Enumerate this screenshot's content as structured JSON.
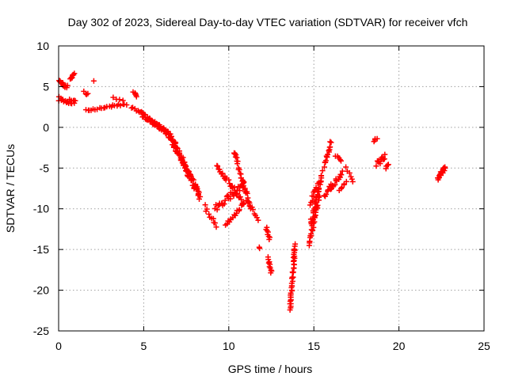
{
  "chart_data": {
    "type": "scatter",
    "title": "Day 302 of 2023, Sidereal Day-to-day VTEC variation (SDTVAR) for receiver vfch",
    "xlabel": "GPS time / hours",
    "ylabel": "SDTVAR / TECUs",
    "xlim": [
      0,
      25
    ],
    "ylim": [
      -25,
      10
    ],
    "xticks": [
      0,
      5,
      10,
      15,
      20,
      25
    ],
    "yticks": [
      -25,
      -20,
      -15,
      -10,
      -5,
      0,
      5,
      10
    ],
    "grid": true,
    "marker": "plus",
    "color": "#ff0000",
    "series": [
      {
        "name": "SDTVAR",
        "segments": [
          {
            "x0": 0.0,
            "x1": 0.5,
            "y0": 5.6,
            "y1": 5.0,
            "spread": 0.5,
            "n": 14
          },
          {
            "x0": 0.0,
            "x1": 1.0,
            "y0": 3.5,
            "y1": 3.0,
            "spread": 0.6,
            "n": 20
          },
          {
            "x0": 0.7,
            "x1": 0.9,
            "y0": 6.0,
            "y1": 6.6,
            "spread": 0.4,
            "n": 8
          },
          {
            "x0": 1.5,
            "x1": 1.7,
            "y0": 4.3,
            "y1": 4.0,
            "spread": 0.3,
            "n": 4
          },
          {
            "x0": 2.05,
            "x1": 2.05,
            "y0": 5.7,
            "y1": 5.7,
            "spread": 0.0,
            "n": 1
          },
          {
            "x0": 1.6,
            "x1": 4.0,
            "y0": 2.1,
            "y1": 2.9,
            "spread": 0.3,
            "n": 22
          },
          {
            "x0": 3.2,
            "x1": 3.8,
            "y0": 3.6,
            "y1": 3.2,
            "spread": 0.2,
            "n": 4
          },
          {
            "x0": 4.4,
            "x1": 4.6,
            "y0": 4.4,
            "y1": 3.8,
            "spread": 0.2,
            "n": 5
          },
          {
            "x0": 4.3,
            "x1": 4.9,
            "y0": 2.5,
            "y1": 1.8,
            "spread": 0.4,
            "n": 8
          },
          {
            "x0": 4.9,
            "x1": 6.5,
            "y0": 1.6,
            "y1": -0.8,
            "spread": 0.5,
            "n": 55
          },
          {
            "x0": 6.5,
            "x1": 8.3,
            "y0": -0.8,
            "y1": -8.5,
            "spread": 0.9,
            "n": 95
          },
          {
            "x0": 8.6,
            "x1": 9.3,
            "y0": -9.8,
            "y1": -12.2,
            "spread": 0.6,
            "n": 10
          },
          {
            "x0": 9.2,
            "x1": 10.9,
            "y0": -10.0,
            "y1": -7.0,
            "spread": 0.8,
            "n": 30
          },
          {
            "x0": 9.3,
            "x1": 10.9,
            "y0": -4.7,
            "y1": -9.5,
            "spread": 0.6,
            "n": 30
          },
          {
            "x0": 10.3,
            "x1": 11.3,
            "y0": -3.0,
            "y1": -10.0,
            "spread": 0.7,
            "n": 35
          },
          {
            "x0": 9.8,
            "x1": 11.0,
            "y0": -12.0,
            "y1": -9.0,
            "spread": 0.5,
            "n": 18
          },
          {
            "x0": 11.4,
            "x1": 11.7,
            "y0": -10.0,
            "y1": -11.2,
            "spread": 0.5,
            "n": 6
          },
          {
            "x0": 11.8,
            "x1": 11.8,
            "y0": -14.8,
            "y1": -14.8,
            "spread": 0.2,
            "n": 2
          },
          {
            "x0": 12.2,
            "x1": 12.4,
            "y0": -12.3,
            "y1": -13.7,
            "spread": 0.2,
            "n": 8
          },
          {
            "x0": 12.3,
            "x1": 12.5,
            "y0": -16.0,
            "y1": -17.9,
            "spread": 0.2,
            "n": 10
          },
          {
            "x0": 13.6,
            "x1": 13.9,
            "y0": -22.3,
            "y1": -14.5,
            "spread": 0.5,
            "n": 45
          },
          {
            "x0": 14.7,
            "x1": 15.3,
            "y0": -14.5,
            "y1": -8.5,
            "spread": 0.6,
            "n": 30
          },
          {
            "x0": 14.8,
            "x1": 15.5,
            "y0": -12.0,
            "y1": -5.5,
            "spread": 0.7,
            "n": 30
          },
          {
            "x0": 14.8,
            "x1": 15.2,
            "y0": -9.5,
            "y1": -7.0,
            "spread": 0.5,
            "n": 10
          },
          {
            "x0": 15.6,
            "x1": 16.0,
            "y0": -4.8,
            "y1": -1.8,
            "spread": 0.6,
            "n": 16
          },
          {
            "x0": 15.6,
            "x1": 16.0,
            "y0": -8.5,
            "y1": -7.0,
            "spread": 0.4,
            "n": 8
          },
          {
            "x0": 16.0,
            "x1": 16.7,
            "y0": -7.5,
            "y1": -5.5,
            "spread": 0.5,
            "n": 14
          },
          {
            "x0": 16.3,
            "x1": 16.6,
            "y0": -3.5,
            "y1": -4.2,
            "spread": 0.3,
            "n": 5
          },
          {
            "x0": 16.5,
            "x1": 16.9,
            "y0": -7.8,
            "y1": -6.7,
            "spread": 0.3,
            "n": 6
          },
          {
            "x0": 16.9,
            "x1": 17.3,
            "y0": -5.0,
            "y1": -6.6,
            "spread": 0.3,
            "n": 6
          },
          {
            "x0": 18.5,
            "x1": 18.7,
            "y0": -1.8,
            "y1": -1.3,
            "spread": 0.3,
            "n": 4
          },
          {
            "x0": 18.7,
            "x1": 19.2,
            "y0": -4.5,
            "y1": -3.6,
            "spread": 0.6,
            "n": 14
          },
          {
            "x0": 19.2,
            "x1": 19.4,
            "y0": -5.0,
            "y1": -4.6,
            "spread": 0.3,
            "n": 4
          },
          {
            "x0": 22.3,
            "x1": 22.7,
            "y0": -6.3,
            "y1": -4.9,
            "spread": 0.6,
            "n": 24
          }
        ]
      }
    ]
  }
}
